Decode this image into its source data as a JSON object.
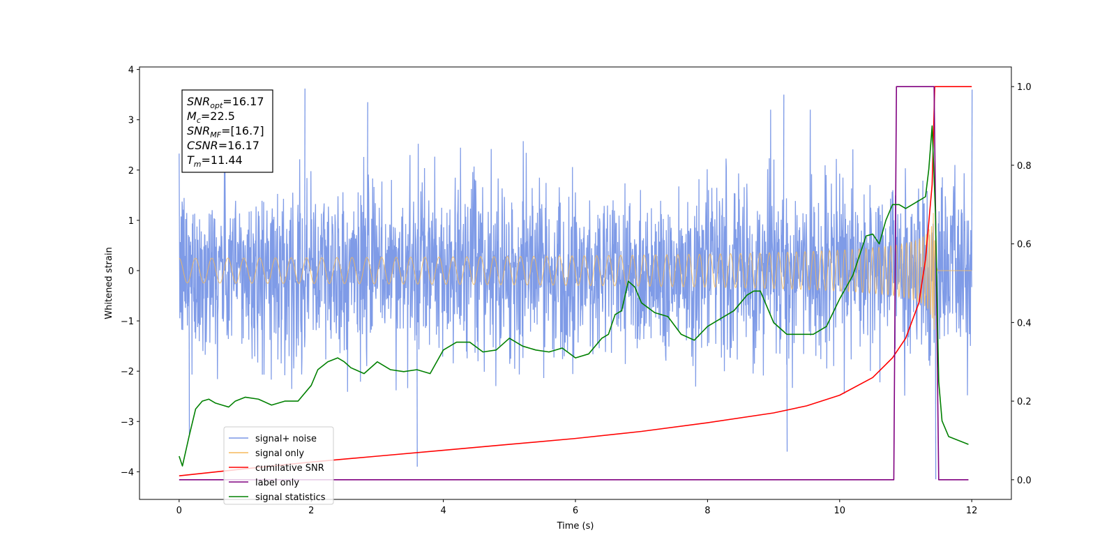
{
  "chart_data": {
    "type": "line",
    "xlabel": "Time (s)",
    "ylabel_left": "Whitened strain",
    "ylabel_right": "",
    "xlim": [
      -0.6,
      12.6
    ],
    "ylim_left": [
      -4.55,
      4.05
    ],
    "ylim_right": [
      -0.05,
      1.05
    ],
    "x_ticks": [
      0,
      2,
      4,
      6,
      8,
      10,
      12
    ],
    "x_tick_labels": [
      "0",
      "2",
      "4",
      "6",
      "8",
      "10",
      "12"
    ],
    "y_left_ticks": [
      -4,
      -3,
      -2,
      -1,
      0,
      1,
      2,
      3,
      4
    ],
    "y_left_tick_labels": [
      "−4",
      "−3",
      "−2",
      "−1",
      "0",
      "1",
      "2",
      "3",
      "4"
    ],
    "y_right_ticks": [
      0.0,
      0.2,
      0.4,
      0.6,
      0.8,
      1.0
    ],
    "y_right_tick_labels": [
      "0.0",
      "0.2",
      "0.4",
      "0.6",
      "0.8",
      "1.0"
    ],
    "grid": false,
    "legend_position": "lower-left",
    "annotation": {
      "lines": [
        {
          "var": "SNR",
          "sub": "opt",
          "value": "=16.17"
        },
        {
          "var": "M",
          "sub": "c",
          "value": "=22.5"
        },
        {
          "var": "SNR",
          "sub": "MF",
          "value": "=[16.7]"
        },
        {
          "var": "CSNR",
          "sub": "",
          "value": "=16.17"
        },
        {
          "var": "T",
          "sub": "m",
          "value": "=11.44"
        }
      ]
    },
    "series": [
      {
        "name": "signal+ noise",
        "axis": "left",
        "color": "#7896e6",
        "style": "noise",
        "x_range": [
          0,
          12
        ],
        "typical_envelope": [
          -2.6,
          2.6
        ],
        "peaks": [
          {
            "x": 1.9,
            "y": 3.62
          },
          {
            "x": 2.85,
            "y": 3.35
          },
          {
            "x": 9.15,
            "y": 3.5
          },
          {
            "x": 12.0,
            "y": 3.6
          },
          {
            "x": 3.6,
            "y": -3.9
          },
          {
            "x": 0.15,
            "y": -3.25
          },
          {
            "x": 9.2,
            "y": -3.6
          },
          {
            "x": 11.45,
            "y": -4.15
          }
        ]
      },
      {
        "name": "signal only",
        "axis": "left",
        "color": "#f5b95a",
        "style": "chirp",
        "t_merger": 11.44,
        "peak_amplitude": 1.3,
        "x_range": [
          0,
          12
        ]
      },
      {
        "name": "cumilative SNR",
        "axis": "right",
        "color": "#ff0000",
        "x": [
          0,
          1,
          2,
          3,
          4,
          5,
          6,
          7,
          8,
          9,
          9.5,
          10,
          10.5,
          10.8,
          11.0,
          11.2,
          11.3,
          11.4,
          11.44,
          12.0
        ],
        "y": [
          0.01,
          0.028,
          0.045,
          0.06,
          0.075,
          0.09,
          0.105,
          0.123,
          0.145,
          0.17,
          0.188,
          0.215,
          0.26,
          0.31,
          0.36,
          0.45,
          0.56,
          0.75,
          1.0,
          1.0
        ]
      },
      {
        "name": "label only",
        "axis": "right",
        "color": "#800080",
        "x": [
          0,
          10.82,
          10.86,
          11.43,
          11.5,
          11.95
        ],
        "y": [
          0,
          0,
          1,
          1,
          0,
          0
        ]
      },
      {
        "name": "signal statistics",
        "axis": "right",
        "color": "#008000",
        "x": [
          0,
          0.05,
          0.15,
          0.25,
          0.35,
          0.45,
          0.55,
          0.65,
          0.75,
          0.85,
          1.0,
          1.2,
          1.4,
          1.6,
          1.8,
          2.0,
          2.1,
          2.25,
          2.4,
          2.5,
          2.6,
          2.8,
          3.0,
          3.2,
          3.4,
          3.6,
          3.8,
          4.0,
          4.2,
          4.4,
          4.6,
          4.8,
          5.0,
          5.2,
          5.4,
          5.6,
          5.8,
          6.0,
          6.2,
          6.4,
          6.5,
          6.6,
          6.7,
          6.8,
          6.9,
          7.0,
          7.2,
          7.4,
          7.6,
          7.8,
          8.0,
          8.2,
          8.4,
          8.6,
          8.7,
          8.8,
          9.0,
          9.2,
          9.4,
          9.6,
          9.8,
          10.0,
          10.2,
          10.3,
          10.4,
          10.5,
          10.6,
          10.7,
          10.8,
          10.9,
          11.0,
          11.1,
          11.2,
          11.3,
          11.35,
          11.4,
          11.45,
          11.5,
          11.55,
          11.65,
          11.8,
          11.95
        ],
        "y": [
          0.06,
          0.035,
          0.11,
          0.18,
          0.2,
          0.205,
          0.195,
          0.19,
          0.185,
          0.2,
          0.21,
          0.205,
          0.19,
          0.2,
          0.2,
          0.24,
          0.28,
          0.3,
          0.31,
          0.3,
          0.285,
          0.27,
          0.3,
          0.28,
          0.275,
          0.28,
          0.27,
          0.33,
          0.35,
          0.35,
          0.325,
          0.33,
          0.36,
          0.34,
          0.33,
          0.325,
          0.335,
          0.31,
          0.32,
          0.36,
          0.37,
          0.42,
          0.43,
          0.505,
          0.49,
          0.45,
          0.425,
          0.415,
          0.37,
          0.355,
          0.39,
          0.41,
          0.43,
          0.47,
          0.48,
          0.48,
          0.4,
          0.37,
          0.37,
          0.37,
          0.39,
          0.46,
          0.52,
          0.57,
          0.62,
          0.625,
          0.6,
          0.66,
          0.7,
          0.7,
          0.69,
          0.7,
          0.71,
          0.72,
          0.79,
          0.9,
          0.68,
          0.25,
          0.15,
          0.11,
          0.1,
          0.09
        ]
      }
    ]
  }
}
